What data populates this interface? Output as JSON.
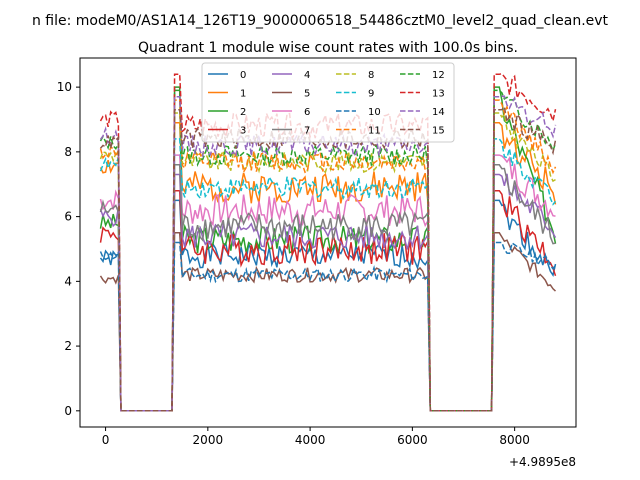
{
  "chart_data": {
    "type": "line",
    "suptitle": "n file: modeM0/AS1A14_126T19_9000006518_54486cztM0_level2_quad_clean.evt",
    "title": "Quadrant 1 module wise count rates with 100.0s bins.",
    "xlabel": "",
    "ylabel": "",
    "x_offset_label": "+4.9895e8",
    "xlim": [
      -500,
      9200
    ],
    "ylim": [
      -0.5,
      10.9
    ],
    "xticks": [
      0,
      2000,
      4000,
      6000,
      8000
    ],
    "yticks": [
      0,
      2,
      4,
      6,
      8,
      10
    ],
    "xticklabels": [
      "0",
      "2000",
      "4000",
      "6000",
      "8000"
    ],
    "yticklabels": [
      "0",
      "2",
      "4",
      "6",
      "8",
      "10"
    ],
    "legend_position": "top-center",
    "active_segments": [
      [
        -100,
        250
      ],
      [
        1350,
        6300
      ],
      [
        7600,
        8800
      ]
    ],
    "series": [
      {
        "name": "0",
        "color": "#1f77b4",
        "dash": false,
        "level": 4.8,
        "noise": 0.35,
        "seed": 1,
        "start": 4.7,
        "peak": 6.5,
        "end": 4.2
      },
      {
        "name": "1",
        "color": "#ff7f0e",
        "dash": false,
        "level": 6.9,
        "noise": 0.45,
        "seed": 2,
        "start": 7.6,
        "peak": 8.9,
        "end": 6.8
      },
      {
        "name": "2",
        "color": "#2ca02c",
        "dash": false,
        "level": 5.3,
        "noise": 0.4,
        "seed": 3,
        "start": 5.8,
        "peak": 10.0,
        "end": 5.5
      },
      {
        "name": "3",
        "color": "#d62728",
        "dash": false,
        "level": 5.0,
        "noise": 0.45,
        "seed": 4,
        "start": 5.5,
        "peak": 6.8,
        "end": 4.5
      },
      {
        "name": "4",
        "color": "#9467bd",
        "dash": false,
        "level": 5.4,
        "noise": 0.4,
        "seed": 5,
        "start": 6.0,
        "peak": 7.3,
        "end": 5.6
      },
      {
        "name": "5",
        "color": "#8c564b",
        "dash": false,
        "level": 4.2,
        "noise": 0.2,
        "seed": 6,
        "start": 4.1,
        "peak": 5.5,
        "end": 3.8
      },
      {
        "name": "6",
        "color": "#e377c2",
        "dash": false,
        "level": 6.2,
        "noise": 0.45,
        "seed": 7,
        "start": 6.5,
        "peak": 7.9,
        "end": 6.2
      },
      {
        "name": "7",
        "color": "#7f7f7f",
        "dash": false,
        "level": 5.7,
        "noise": 0.4,
        "seed": 8,
        "start": 6.2,
        "peak": 7.6,
        "end": 5.3
      },
      {
        "name": "8",
        "color": "#bcbd22",
        "dash": true,
        "level": 7.7,
        "noise": 0.3,
        "seed": 9,
        "start": 7.9,
        "peak": 9.2,
        "end": 7.2
      },
      {
        "name": "9",
        "color": "#17becf",
        "dash": true,
        "level": 6.9,
        "noise": 0.3,
        "seed": 10,
        "start": 7.6,
        "peak": 8.4,
        "end": 6.5
      },
      {
        "name": "10",
        "color": "#1f77b4",
        "dash": true,
        "level": 4.2,
        "noise": 0.2,
        "seed": 11,
        "start": 4.8,
        "peak": 5.2,
        "end": 4.5
      },
      {
        "name": "11",
        "color": "#ff7f0e",
        "dash": true,
        "level": 7.7,
        "noise": 0.3,
        "seed": 12,
        "start": 8.0,
        "peak": 9.6,
        "end": 7.5
      },
      {
        "name": "12",
        "color": "#2ca02c",
        "dash": true,
        "level": 7.9,
        "noise": 0.3,
        "seed": 13,
        "start": 8.3,
        "peak": 9.9,
        "end": 8.2
      },
      {
        "name": "13",
        "color": "#d62728",
        "dash": true,
        "level": 8.8,
        "noise": 0.35,
        "seed": 14,
        "start": 9.0,
        "peak": 10.4,
        "end": 9.2
      },
      {
        "name": "14",
        "color": "#9467bd",
        "dash": true,
        "level": 8.2,
        "noise": 0.3,
        "seed": 15,
        "start": 8.5,
        "peak": 9.7,
        "end": 8.7
      },
      {
        "name": "15",
        "color": "#8c564b",
        "dash": true,
        "level": 8.4,
        "noise": 0.3,
        "seed": 16,
        "start": 8.3,
        "peak": 9.3,
        "end": 8.2
      }
    ]
  }
}
